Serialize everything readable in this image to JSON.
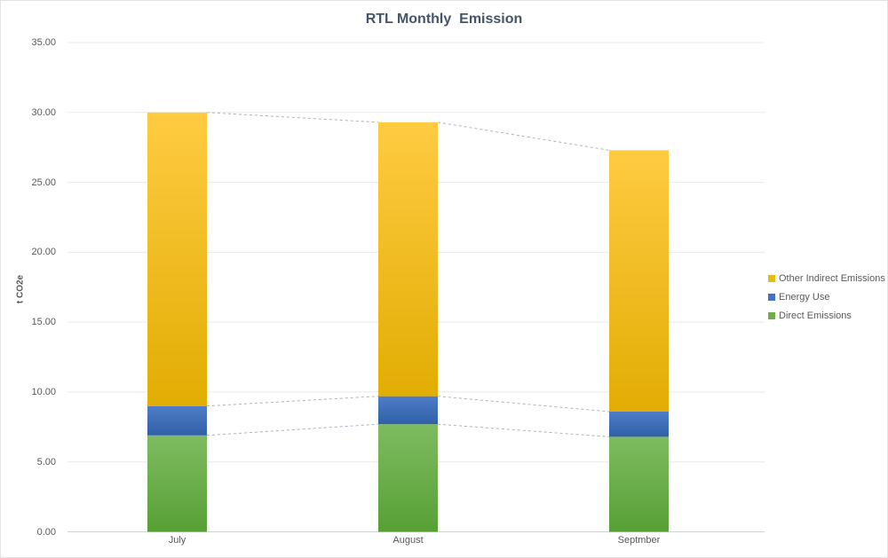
{
  "chart": {
    "title": "RTL Monthly  Emission",
    "title_color": "#44546a",
    "y_axis_title": "t CO2e",
    "axis_text_color": "#595959",
    "gridline_color": "#e9e9e9",
    "axis_line_color": "#d2d2d2",
    "series_line_color": "#a6b4c2",
    "background": "#ffffff"
  },
  "chart_data": {
    "type": "bar",
    "stacked": true,
    "title": "RTL Monthly  Emission",
    "xlabel": "",
    "ylabel": "t CO2e",
    "categories": [
      "July",
      "August",
      "Septmber"
    ],
    "series": [
      {
        "name": "Direct Emissions",
        "values": [
          6.9,
          7.7,
          6.8
        ],
        "color": "#70ad47",
        "gradient_top": "#7fbb61",
        "gradient_bottom": "#57a034"
      },
      {
        "name": "Energy Use",
        "values": [
          2.1,
          2.0,
          1.8
        ],
        "color": "#4472c4",
        "gradient_top": "#4f7dc8",
        "gradient_bottom": "#3060a7"
      },
      {
        "name": "Other Indirect Emissions",
        "values": [
          21.0,
          19.6,
          18.7
        ],
        "color": "#eab818",
        "gradient_top": "#ffcb42",
        "gradient_bottom": "#e2ad03"
      }
    ],
    "totals": [
      30.0,
      29.3,
      27.3
    ],
    "ylim": [
      0,
      35
    ],
    "ytick_step": 5,
    "ytick_labels": [
      "0.00",
      "5.00",
      "10.00",
      "15.00",
      "20.00",
      "25.00",
      "30.00",
      "35.00"
    ],
    "grid": true,
    "series_lines": true,
    "legend_position": "right"
  },
  "legend": {
    "items": [
      {
        "label": "Other Indirect Emissions",
        "color": "#eab818"
      },
      {
        "label": "Energy Use",
        "color": "#4472c4"
      },
      {
        "label": "Direct Emissions",
        "color": "#70ad47"
      }
    ]
  }
}
